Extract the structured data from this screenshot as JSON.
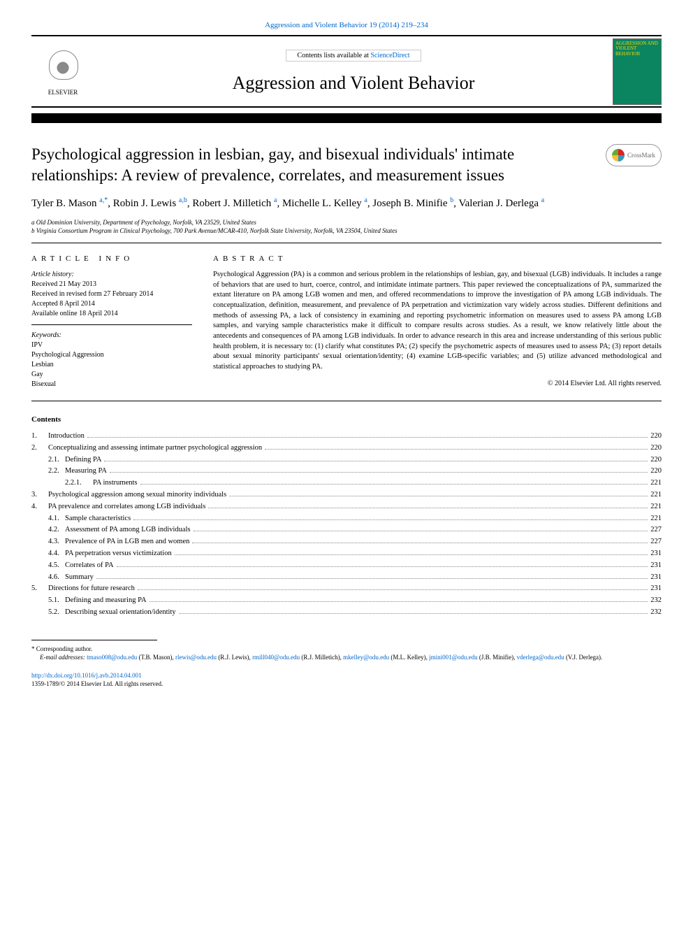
{
  "header": {
    "citation": "Aggression and Violent Behavior 19 (2014) 219–234",
    "contents_available": "Contents lists available at ",
    "sciencedirect": "ScienceDirect",
    "journal_name": "Aggression and Violent Behavior",
    "elsevier_label": "ELSEVIER",
    "cover_text": "AGGRESSION AND VIOLENT BEHAVIOR",
    "crossmark": "CrossMark"
  },
  "title": "Psychological aggression in lesbian, gay, and bisexual individuals' intimate relationships: A review of prevalence, correlates, and measurement issues",
  "authors_line1": "Tyler B. Mason ",
  "authors_sup1": "a,",
  "authors_star": "*",
  "authors_line2": ", Robin J. Lewis ",
  "authors_sup2": "a,b",
  "authors_line3": ", Robert J. Milletich ",
  "authors_sup3": "a",
  "authors_line4": ", Michelle L. Kelley ",
  "authors_sup4": "a",
  "authors_line5": ", Joseph B. Minifie ",
  "authors_sup5": "b",
  "authors_line6": ", Valerian J. Derlega ",
  "authors_sup6": "a",
  "affiliations": {
    "a": "a Old Dominion University, Department of Psychology, Norfolk, VA 23529, United States",
    "b": "b Virginia Consortium Program in Clinical Psychology, 700 Park Avenue/MCAR-410, Norfolk State University, Norfolk, VA 23504, United States"
  },
  "info_head": "article info",
  "abstract_head": "abstract",
  "history": {
    "label": "Article history:",
    "received": "Received 21 May 2013",
    "revised": "Received in revised form 27 February 2014",
    "accepted": "Accepted 8 April 2014",
    "online": "Available online 18 April 2014"
  },
  "keywords": {
    "label": "Keywords:",
    "k1": "IPV",
    "k2": "Psychological Aggression",
    "k3": "Lesbian",
    "k4": "Gay",
    "k5": "Bisexual"
  },
  "abstract": "Psychological Aggression (PA) is a common and serious problem in the relationships of lesbian, gay, and bisexual (LGB) individuals. It includes a range of behaviors that are used to hurt, coerce, control, and intimidate intimate partners. This paper reviewed the conceptualizations of PA, summarized the extant literature on PA among LGB women and men, and offered recommendations to improve the investigation of PA among LGB individuals. The conceptualization, definition, measurement, and prevalence of PA perpetration and victimization vary widely across studies. Different definitions and methods of assessing PA, a lack of consistency in examining and reporting psychometric information on measures used to assess PA among LGB samples, and varying sample characteristics make it difficult to compare results across studies. As a result, we know relatively little about the antecedents and consequences of PA among LGB individuals. In order to advance research in this area and increase understanding of this serious public health problem, it is necessary to: (1) clarify what constitutes PA; (2) specify the psychometric aspects of measures used to assess PA; (3) report details about sexual minority participants' sexual orientation/identity; (4) examine LGB-specific variables; and (5) utilize advanced methodological and statistical approaches to studying PA.",
  "copyright": "© 2014 Elsevier Ltd. All rights reserved.",
  "contents_head": "Contents",
  "toc": [
    {
      "num": "1.",
      "title": "Introduction",
      "page": "220",
      "level": 1
    },
    {
      "num": "2.",
      "title": "Conceptualizing and assessing intimate partner psychological aggression",
      "page": "220",
      "level": 1
    },
    {
      "num": "2.1.",
      "title": "Defining PA",
      "page": "220",
      "level": 2
    },
    {
      "num": "2.2.",
      "title": "Measuring PA",
      "page": "220",
      "level": 2
    },
    {
      "num": "2.2.1.",
      "title": "PA instruments",
      "page": "221",
      "level": 3
    },
    {
      "num": "3.",
      "title": "Psychological aggression among sexual minority individuals",
      "page": "221",
      "level": 1
    },
    {
      "num": "4.",
      "title": "PA prevalence and correlates among LGB individuals",
      "page": "221",
      "level": 1
    },
    {
      "num": "4.1.",
      "title": "Sample characteristics",
      "page": "221",
      "level": 2
    },
    {
      "num": "4.2.",
      "title": "Assessment of PA among LGB individuals",
      "page": "227",
      "level": 2
    },
    {
      "num": "4.3.",
      "title": "Prevalence of PA in LGB men and women",
      "page": "227",
      "level": 2
    },
    {
      "num": "4.4.",
      "title": "PA perpetration versus victimization",
      "page": "231",
      "level": 2
    },
    {
      "num": "4.5.",
      "title": "Correlates of PA",
      "page": "231",
      "level": 2
    },
    {
      "num": "4.6.",
      "title": "Summary",
      "page": "231",
      "level": 2
    },
    {
      "num": "5.",
      "title": "Directions for future research",
      "page": "231",
      "level": 1
    },
    {
      "num": "5.1.",
      "title": "Defining and measuring PA",
      "page": "232",
      "level": 2
    },
    {
      "num": "5.2.",
      "title": "Describing sexual orientation/identity",
      "page": "232",
      "level": 2
    }
  ],
  "footer": {
    "corr": "Corresponding author.",
    "emails_label": "E-mail addresses: ",
    "e1": "tmaso008@odu.edu",
    "n1": " (T.B. Mason), ",
    "e2": "rlewis@odu.edu",
    "n2": " (R.J. Lewis), ",
    "e3": "rmill040@odu.edu",
    "n3": " (R.J. Milletich), ",
    "e4": "mkelley@odu.edu",
    "n4": " (M.L. Kelley), ",
    "e5": "jmini001@odu.edu",
    "n5": " (J.B. Minifie), ",
    "e6": "vderlega@odu.edu",
    "n6": " (V.J. Derlega).",
    "doi": "http://dx.doi.org/10.1016/j.avb.2014.04.001",
    "issn": "1359-1789/© 2014 Elsevier Ltd. All rights reserved."
  }
}
